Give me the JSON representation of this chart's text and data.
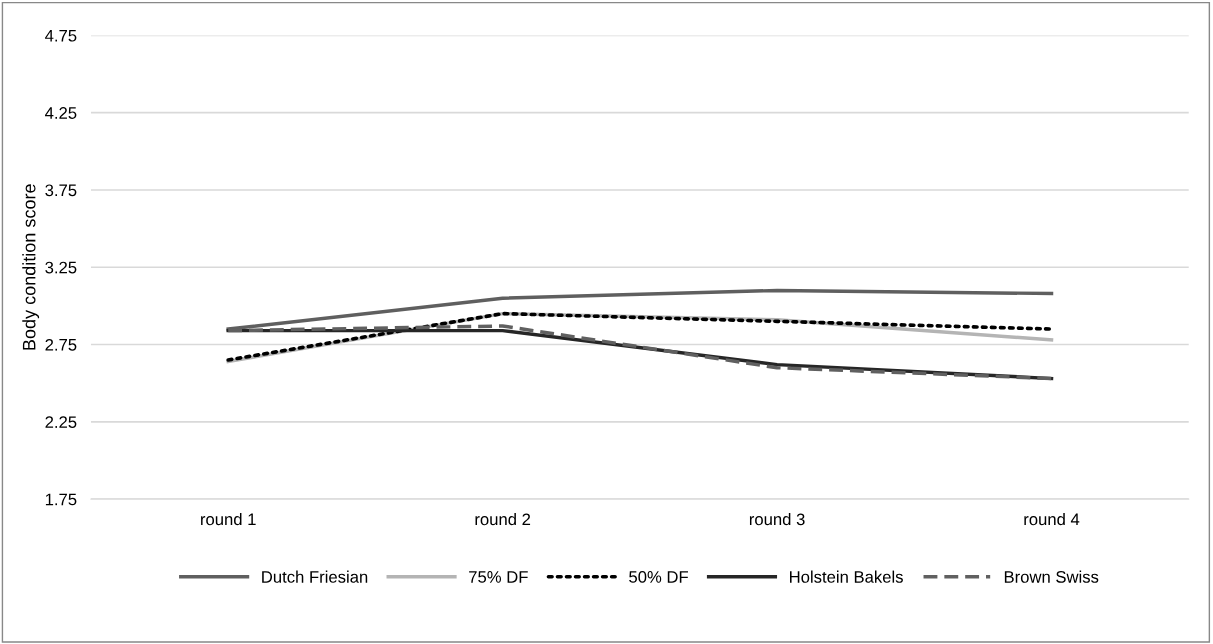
{
  "chart_data": {
    "type": "line",
    "ylabel": "Body condition score",
    "categories": [
      "round 1",
      "round 2",
      "round 3",
      "round 4"
    ],
    "series": [
      {
        "name": "Dutch Friesian",
        "color": "#5f5f5f",
        "line_style": "solid",
        "values": [
          2.85,
          3.05,
          3.1,
          3.08
        ]
      },
      {
        "name": "75% DF",
        "color": "#b4b4b4",
        "line_style": "solid",
        "values": [
          2.64,
          2.95,
          2.91,
          2.78
        ]
      },
      {
        "name": "50% DF",
        "color": "#000000",
        "line_style": "dotted",
        "values": [
          2.65,
          2.95,
          2.9,
          2.85
        ]
      },
      {
        "name": "Holstein Bakels",
        "color": "#262626",
        "line_style": "solid",
        "values": [
          2.84,
          2.84,
          2.62,
          2.53
        ]
      },
      {
        "name": "Brown Swiss",
        "color": "#606060",
        "line_style": "dashed",
        "values": [
          2.84,
          2.87,
          2.6,
          2.53
        ]
      }
    ],
    "ylim": [
      1.75,
      4.75
    ],
    "yticks": [
      1.75,
      2.25,
      2.75,
      3.25,
      3.75,
      4.25,
      4.75
    ],
    "grid": "y",
    "legend": "bottom",
    "marker": "none"
  }
}
